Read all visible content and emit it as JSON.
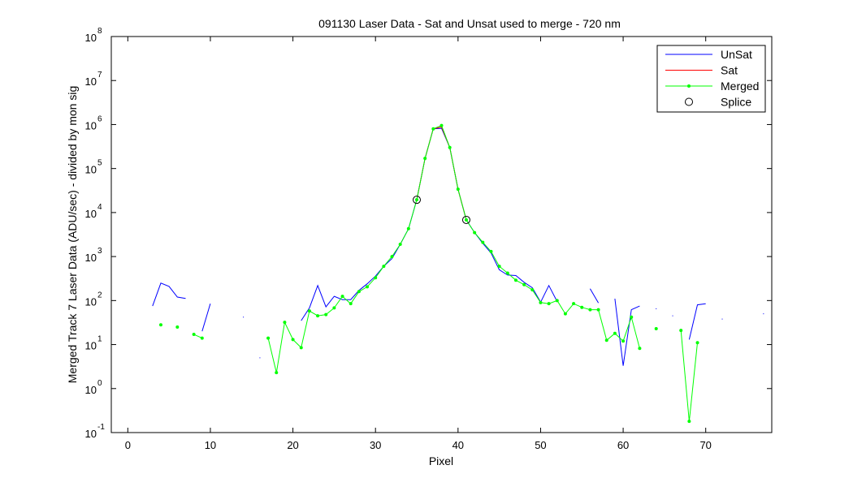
{
  "chart_data": {
    "type": "line",
    "title": "091130 Laser Data - Sat and Unsat used to merge  - 720 nm",
    "xlabel": "Pixel",
    "ylabel": "Merged Track 7 Laser Data (ADU/sec) - divided by mon sig",
    "xlim": [
      -2,
      78
    ],
    "ylim": [
      0.1,
      100000000
    ],
    "yscale": "log",
    "grid": false,
    "legend_position": "top-right",
    "x_ticks": [
      0,
      10,
      20,
      30,
      40,
      50,
      60,
      70
    ],
    "y_ticks": [
      {
        "value": 0.1,
        "base": "10",
        "exp": "-1"
      },
      {
        "value": 1,
        "base": "10",
        "exp": "0"
      },
      {
        "value": 10,
        "base": "10",
        "exp": "1"
      },
      {
        "value": 100,
        "base": "10",
        "exp": "2"
      },
      {
        "value": 1000,
        "base": "10",
        "exp": "3"
      },
      {
        "value": 10000,
        "base": "10",
        "exp": "4"
      },
      {
        "value": 100000,
        "base": "10",
        "exp": "5"
      },
      {
        "value": 1000000,
        "base": "10",
        "exp": "6"
      },
      {
        "value": 10000000,
        "base": "10",
        "exp": "7"
      },
      {
        "value": 100000000,
        "base": "10",
        "exp": "8"
      }
    ],
    "series": [
      {
        "name": "UnSat",
        "color": "#0000ff",
        "marker": "none",
        "points": [
          [
            3,
            75
          ],
          [
            4,
            250
          ],
          [
            5,
            210
          ],
          [
            6,
            120
          ],
          [
            7,
            112
          ],
          null,
          [
            9,
            20
          ],
          [
            10,
            85
          ],
          null,
          [
            14,
            42
          ],
          null,
          [
            16,
            5
          ],
          null,
          [
            21,
            35
          ],
          [
            22,
            68
          ],
          [
            23,
            220
          ],
          [
            24,
            72
          ],
          [
            25,
            125
          ],
          [
            26,
            105
          ],
          [
            27,
            105
          ],
          [
            28,
            170
          ],
          [
            29,
            240
          ],
          [
            30,
            360
          ],
          [
            31,
            600
          ],
          [
            32,
            900
          ],
          [
            33,
            1900
          ],
          [
            34,
            4300
          ],
          [
            35,
            19500
          ],
          [
            36,
            170000
          ],
          [
            37,
            800000
          ],
          [
            38,
            820000
          ],
          [
            39,
            300000
          ],
          [
            40,
            34000
          ],
          [
            41,
            6800
          ],
          [
            42,
            3500
          ],
          [
            43,
            2000
          ],
          [
            44,
            1200
          ],
          [
            45,
            500
          ],
          [
            46,
            380
          ],
          [
            47,
            370
          ],
          [
            48,
            260
          ],
          [
            49,
            195
          ],
          [
            50,
            92
          ],
          [
            51,
            220
          ],
          [
            52,
            95
          ],
          null,
          [
            56,
            185
          ],
          [
            57,
            88
          ],
          null,
          [
            59,
            110
          ],
          [
            60,
            3.3
          ],
          [
            61,
            62
          ],
          [
            62,
            75
          ],
          null,
          [
            64,
            65
          ],
          null,
          [
            66,
            45
          ],
          null,
          [
            68,
            13
          ],
          [
            69,
            80
          ],
          [
            70,
            85
          ],
          null,
          [
            72,
            38
          ],
          null,
          [
            77,
            50
          ]
        ]
      },
      {
        "name": "Sat",
        "color": "#ff0000",
        "marker": "none",
        "points": [
          [
            35,
            19500
          ],
          [
            36,
            170000
          ],
          [
            37,
            800000
          ],
          [
            38,
            880000
          ],
          [
            39,
            300000
          ],
          [
            40,
            34000
          ],
          [
            41,
            6800
          ]
        ]
      },
      {
        "name": "Merged",
        "color": "#00ff00",
        "marker": "dot",
        "points": [
          [
            4,
            28
          ],
          null,
          [
            6,
            25
          ],
          null,
          [
            8,
            17
          ],
          [
            9,
            14
          ],
          null,
          [
            17,
            14
          ],
          [
            18,
            2.3
          ],
          [
            19,
            32
          ],
          [
            20,
            13
          ],
          [
            21,
            8.5
          ],
          [
            22,
            58
          ],
          [
            23,
            45
          ],
          [
            24,
            48
          ],
          [
            25,
            68
          ],
          [
            26,
            125
          ],
          [
            27,
            85
          ],
          [
            28,
            160
          ],
          [
            29,
            205
          ],
          [
            30,
            330
          ],
          [
            31,
            600
          ],
          [
            32,
            1000
          ],
          [
            33,
            1900
          ],
          [
            34,
            4300
          ],
          [
            35,
            19500
          ],
          [
            36,
            170000
          ],
          [
            37,
            800000
          ],
          [
            38,
            950000
          ],
          [
            39,
            300000
          ],
          [
            40,
            34000
          ],
          [
            41,
            6800
          ],
          [
            42,
            3500
          ],
          [
            43,
            2100
          ],
          [
            44,
            1300
          ],
          [
            45,
            600
          ],
          [
            46,
            420
          ],
          [
            47,
            290
          ],
          [
            48,
            230
          ],
          [
            49,
            175
          ],
          [
            50,
            90
          ],
          [
            51,
            85
          ],
          [
            52,
            100
          ],
          [
            53,
            50
          ],
          [
            54,
            85
          ],
          [
            55,
            70
          ],
          [
            56,
            62
          ],
          [
            57,
            62
          ],
          [
            58,
            12.5
          ],
          [
            59,
            18
          ],
          [
            60,
            12
          ],
          [
            61,
            42
          ],
          [
            62,
            8.2
          ],
          null,
          [
            64,
            23
          ],
          null,
          [
            67,
            21
          ],
          [
            68,
            0.18
          ],
          [
            69,
            11
          ]
        ]
      }
    ],
    "splice": {
      "name": "Splice",
      "points": [
        [
          35,
          19500
        ],
        [
          41,
          6800
        ]
      ]
    },
    "legend": [
      {
        "label": "UnSat",
        "style": "line",
        "color": "#0000ff"
      },
      {
        "label": "Sat",
        "style": "line",
        "color": "#ff0000"
      },
      {
        "label": "Merged",
        "style": "line-dot",
        "color": "#00ff00"
      },
      {
        "label": "Splice",
        "style": "circle",
        "color": "#000000"
      }
    ]
  }
}
